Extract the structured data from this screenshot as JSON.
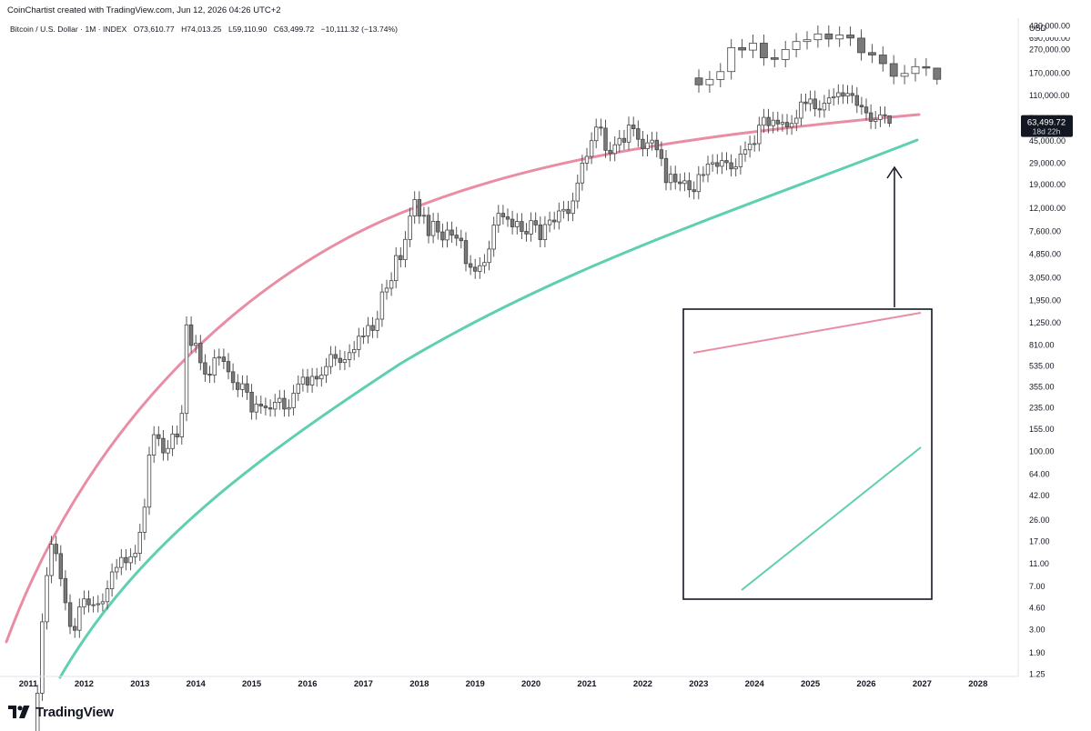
{
  "header": {
    "attribution": "CoinChartist created with TradingView.com, Jun 12, 2026 04:26 UTC+2",
    "symbol_title": "Bitcoin / U.S. Dollar · 1M · INDEX",
    "open": "O73,610.77",
    "high": "H74,013.25",
    "low": "L59,110.90",
    "close": "C63,499.72",
    "change": "−10,111.32 (−13.74%)"
  },
  "price_scale": {
    "currency": "USD",
    "last_price_label": "63,499.72",
    "countdown_label": "18d 22h",
    "last_price_badge_color": "#131722",
    "partial_top_label": "690,000.00",
    "partial_overlap_label": "70,000.00"
  },
  "brand": {
    "name": "TradingView",
    "logo_icon": "tradingview-logo-icon"
  },
  "colors": {
    "upper_curve": "#e98da4",
    "lower_curve": "#5fcfb1",
    "candle_up_fill": "#ffffff",
    "candle_down_fill": "#7a7a7a",
    "candle_stroke": "#444444",
    "annotation_box": "#131722"
  },
  "chart_data": {
    "type": "candlestick",
    "symbol": "Bitcoin / U.S. Dollar",
    "interval": "1M",
    "exchange": "INDEX",
    "y_scale": "log",
    "currency": "USD",
    "y_ticks": [
      430000,
      270000,
      170000,
      110000,
      45000,
      29000,
      19000,
      12000,
      7600,
      4850,
      3050,
      1950,
      1250,
      810,
      535,
      355,
      235,
      155,
      100,
      64,
      42,
      26,
      17,
      11,
      7,
      4.6,
      3,
      1.9,
      1.25
    ],
    "y_tick_labels": [
      "430,000.00",
      "270,000.00",
      "170,000.00",
      "110,000.00",
      "45,000.00",
      "29,000.00",
      "19,000.00",
      "12,000.00",
      "7,600.00",
      "4,850.00",
      "3,050.00",
      "1,950.00",
      "1,250.00",
      "810.00",
      "535.00",
      "355.00",
      "235.00",
      "155.00",
      "100.00",
      "64.00",
      "42.00",
      "26.00",
      "17.00",
      "11.00",
      "7.00",
      "4.60",
      "3.00",
      "1.90",
      "1.25"
    ],
    "x_ticks": [
      "2011",
      "2012",
      "2013",
      "2014",
      "2015",
      "2016",
      "2017",
      "2018",
      "2019",
      "2020",
      "2021",
      "2022",
      "2023",
      "2024",
      "2025",
      "2026",
      "2027",
      "2028"
    ],
    "x_range": [
      "2011-01",
      "2028-09"
    ],
    "last_price": 63499.72,
    "ohlc_last": {
      "open": 73610.77,
      "high": 74013.25,
      "low": 59110.9,
      "close": 63499.72
    },
    "monthly_closes": [
      [
        "2011-03",
        0.86
      ],
      [
        "2011-04",
        3.5
      ],
      [
        "2011-05",
        8.7
      ],
      [
        "2011-06",
        16.1
      ],
      [
        "2011-07",
        13.4
      ],
      [
        "2011-08",
        8.2
      ],
      [
        "2011-09",
        5.1
      ],
      [
        "2011-10",
        3.2
      ],
      [
        "2011-11",
        2.97
      ],
      [
        "2011-12",
        4.7
      ],
      [
        "2012-01",
        5.5
      ],
      [
        "2012-02",
        4.9
      ],
      [
        "2012-03",
        4.9
      ],
      [
        "2012-04",
        5.0
      ],
      [
        "2012-05",
        5.2
      ],
      [
        "2012-06",
        6.7
      ],
      [
        "2012-07",
        9.35
      ],
      [
        "2012-08",
        10.2
      ],
      [
        "2012-09",
        12.4
      ],
      [
        "2012-10",
        11.2
      ],
      [
        "2012-11",
        12.6
      ],
      [
        "2012-12",
        13.5
      ],
      [
        "2013-01",
        20.4
      ],
      [
        "2013-02",
        33.4
      ],
      [
        "2013-03",
        93
      ],
      [
        "2013-04",
        139
      ],
      [
        "2013-05",
        129
      ],
      [
        "2013-06",
        97
      ],
      [
        "2013-07",
        106
      ],
      [
        "2013-08",
        141
      ],
      [
        "2013-09",
        133
      ],
      [
        "2013-10",
        211
      ],
      [
        "2013-11",
        1205
      ],
      [
        "2013-12",
        805
      ],
      [
        "2014-01",
        838
      ],
      [
        "2014-02",
        573
      ],
      [
        "2014-03",
        457
      ],
      [
        "2014-04",
        448
      ],
      [
        "2014-05",
        628
      ],
      [
        "2014-06",
        640
      ],
      [
        "2014-07",
        586
      ],
      [
        "2014-08",
        479
      ],
      [
        "2014-09",
        387
      ],
      [
        "2014-10",
        338
      ],
      [
        "2014-11",
        378
      ],
      [
        "2014-12",
        320
      ],
      [
        "2015-01",
        217
      ],
      [
        "2015-02",
        254
      ],
      [
        "2015-03",
        244
      ],
      [
        "2015-04",
        236
      ],
      [
        "2015-05",
        230
      ],
      [
        "2015-06",
        263
      ],
      [
        "2015-07",
        284
      ],
      [
        "2015-08",
        230
      ],
      [
        "2015-09",
        236
      ],
      [
        "2015-10",
        314
      ],
      [
        "2015-11",
        377
      ],
      [
        "2015-12",
        430
      ],
      [
        "2016-01",
        369
      ],
      [
        "2016-02",
        437
      ],
      [
        "2016-03",
        416
      ],
      [
        "2016-04",
        448
      ],
      [
        "2016-05",
        531
      ],
      [
        "2016-06",
        673
      ],
      [
        "2016-07",
        624
      ],
      [
        "2016-08",
        575
      ],
      [
        "2016-09",
        609
      ],
      [
        "2016-10",
        698
      ],
      [
        "2016-11",
        742
      ],
      [
        "2016-12",
        963
      ],
      [
        "2017-01",
        970
      ],
      [
        "2017-02",
        1190
      ],
      [
        "2017-03",
        1080
      ],
      [
        "2017-04",
        1348
      ],
      [
        "2017-05",
        2300
      ],
      [
        "2017-06",
        2480
      ],
      [
        "2017-07",
        2875
      ],
      [
        "2017-08",
        4703
      ],
      [
        "2017-09",
        4338
      ],
      [
        "2017-10",
        6468
      ],
      [
        "2017-11",
        10233
      ],
      [
        "2017-12",
        14156
      ],
      [
        "2018-01",
        10221
      ],
      [
        "2018-02",
        10397
      ],
      [
        "2018-03",
        6973
      ],
      [
        "2018-04",
        9240
      ],
      [
        "2018-05",
        7494
      ],
      [
        "2018-06",
        6404
      ],
      [
        "2018-07",
        7780
      ],
      [
        "2018-08",
        7037
      ],
      [
        "2018-09",
        6625
      ],
      [
        "2018-10",
        6317
      ],
      [
        "2018-11",
        4017
      ],
      [
        "2018-12",
        3742
      ],
      [
        "2019-01",
        3457
      ],
      [
        "2019-02",
        3854
      ],
      [
        "2019-03",
        4105
      ],
      [
        "2019-04",
        5350
      ],
      [
        "2019-05",
        8574
      ],
      [
        "2019-06",
        10817
      ],
      [
        "2019-07",
        10085
      ],
      [
        "2019-08",
        9630
      ],
      [
        "2019-09",
        8293
      ],
      [
        "2019-10",
        9199
      ],
      [
        "2019-11",
        7569
      ],
      [
        "2019-12",
        7193
      ],
      [
        "2020-01",
        9350
      ],
      [
        "2020-02",
        8599
      ],
      [
        "2020-03",
        6438
      ],
      [
        "2020-04",
        8658
      ],
      [
        "2020-05",
        9461
      ],
      [
        "2020-06",
        9137
      ],
      [
        "2020-07",
        11323
      ],
      [
        "2020-08",
        11680
      ],
      [
        "2020-09",
        10784
      ],
      [
        "2020-10",
        13781
      ],
      [
        "2020-11",
        19625
      ],
      [
        "2020-12",
        29002
      ],
      [
        "2021-01",
        33114
      ],
      [
        "2021-02",
        45137
      ],
      [
        "2021-03",
        58918
      ],
      [
        "2021-04",
        57750
      ],
      [
        "2021-05",
        37332
      ],
      [
        "2021-06",
        35041
      ],
      [
        "2021-07",
        41626
      ],
      [
        "2021-08",
        47167
      ],
      [
        "2021-09",
        43791
      ],
      [
        "2021-10",
        61318
      ],
      [
        "2021-11",
        57005
      ],
      [
        "2021-12",
        46306
      ],
      [
        "2022-01",
        38483
      ],
      [
        "2022-02",
        43194
      ],
      [
        "2022-03",
        45538
      ],
      [
        "2022-04",
        37714
      ],
      [
        "2022-05",
        31792
      ],
      [
        "2022-06",
        19784
      ],
      [
        "2022-07",
        23336
      ],
      [
        "2022-08",
        20050
      ],
      [
        "2022-09",
        19431
      ],
      [
        "2022-10",
        20495
      ],
      [
        "2022-11",
        17168
      ],
      [
        "2022-12",
        16548
      ],
      [
        "2023-01",
        23139
      ],
      [
        "2023-02",
        23147
      ],
      [
        "2023-03",
        28478
      ],
      [
        "2023-04",
        29268
      ],
      [
        "2023-05",
        27219
      ],
      [
        "2023-06",
        30477
      ],
      [
        "2023-07",
        29230
      ],
      [
        "2023-08",
        25931
      ],
      [
        "2023-09",
        26967
      ],
      [
        "2023-10",
        34667
      ],
      [
        "2023-11",
        37712
      ],
      [
        "2023-12",
        42265
      ],
      [
        "2024-01",
        42582
      ],
      [
        "2024-02",
        61198
      ],
      [
        "2024-03",
        71333
      ],
      [
        "2024-04",
        60636
      ],
      [
        "2024-05",
        67491
      ],
      [
        "2024-06",
        62678
      ],
      [
        "2024-07",
        64619
      ],
      [
        "2024-08",
        58969
      ],
      [
        "2024-09",
        63329
      ],
      [
        "2024-10",
        70215
      ],
      [
        "2024-11",
        96449
      ],
      [
        "2024-12",
        93429
      ],
      [
        "2025-01",
        102405
      ],
      [
        "2025-02",
        84373
      ],
      [
        "2025-03",
        82548
      ],
      [
        "2025-04",
        94207
      ],
      [
        "2025-05",
        104638
      ],
      [
        "2025-06",
        107135
      ],
      [
        "2025-07",
        115758
      ],
      [
        "2025-08",
        108236
      ],
      [
        "2025-09",
        114056
      ],
      [
        "2025-10",
        109556
      ],
      [
        "2025-11",
        90394
      ],
      [
        "2025-12",
        87500
      ],
      [
        "2026-01",
        78000
      ],
      [
        "2026-02",
        66000
      ],
      [
        "2026-03",
        68500
      ],
      [
        "2026-04",
        75000
      ],
      [
        "2026-05",
        73610.77
      ],
      [
        "2026-06",
        63499.72
      ]
    ],
    "annotation": "zoomed inset of recent monthly candles between upper and lower curves, with arrow pointing to current candle"
  }
}
